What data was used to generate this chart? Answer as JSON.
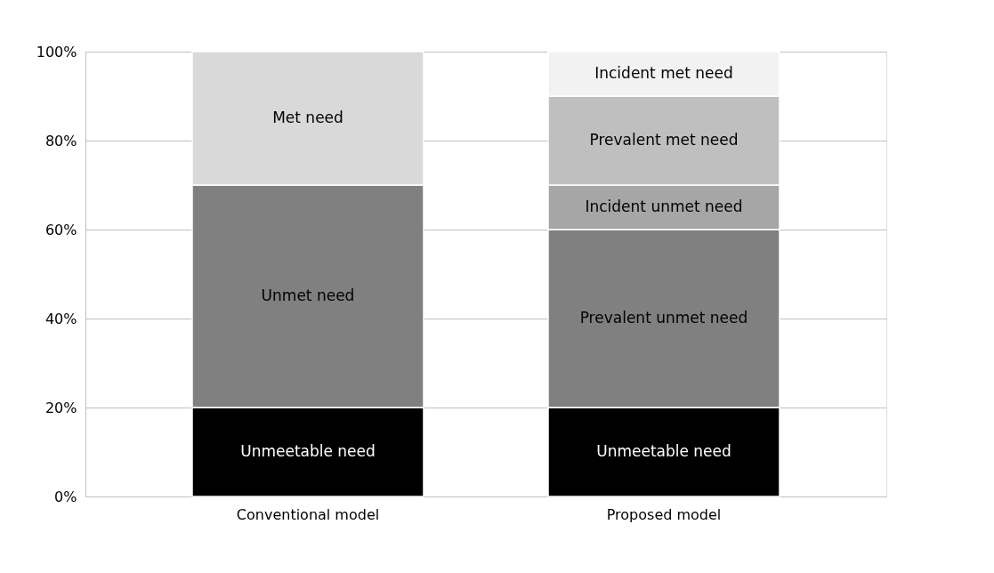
{
  "chart_data": {
    "type": "bar",
    "stacked": true,
    "categories": [
      "Conventional model",
      "Proposed model"
    ],
    "series": [
      {
        "name": "Unmeetable need",
        "color": "#000000",
        "values": [
          20,
          20
        ]
      },
      {
        "name": "Unmet need",
        "color": "#808080",
        "values": [
          50,
          null
        ]
      },
      {
        "name": "Met need",
        "color": "#d9d9d9",
        "values": [
          30,
          null
        ]
      },
      {
        "name": "Prevalent unmet need",
        "color": "#808080",
        "values": [
          null,
          40
        ]
      },
      {
        "name": "Incident unmet need",
        "color": "#a6a6a6",
        "values": [
          null,
          10
        ]
      },
      {
        "name": "Prevalent met need",
        "color": "#bfbfbf",
        "values": [
          null,
          20
        ]
      },
      {
        "name": "Incident met need",
        "color": "#f2f2f2",
        "values": [
          null,
          10
        ]
      }
    ],
    "ylim": [
      0,
      100
    ],
    "yticks": [
      {
        "value": 0,
        "label": "0%"
      },
      {
        "value": 20,
        "label": "20%"
      },
      {
        "value": 40,
        "label": "40%"
      },
      {
        "value": 60,
        "label": "60%"
      },
      {
        "value": 80,
        "label": "80%"
      },
      {
        "value": 100,
        "label": "100%"
      }
    ],
    "grid": "y",
    "legend": false
  }
}
